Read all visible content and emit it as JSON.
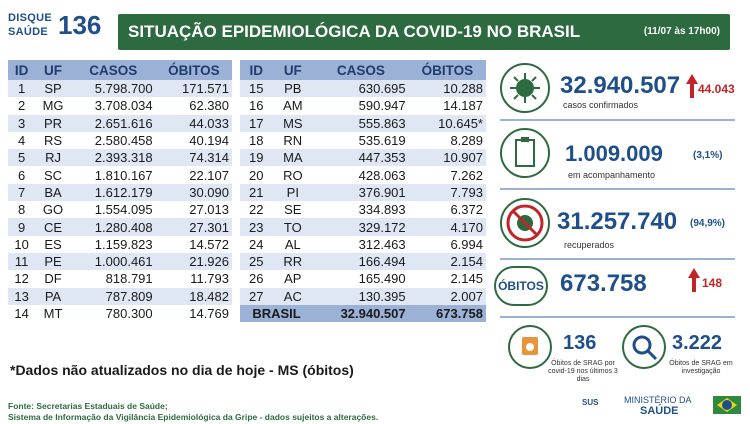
{
  "logo": {
    "line1": "DISQUE",
    "line2": "SAÚDE",
    "number": "136"
  },
  "header": {
    "title": "SITUAÇÃO EPIDEMIOLÓGICA DA COVID-19 NO BRASIL",
    "date": "(11/07 às 17h00)"
  },
  "table": {
    "columns": [
      "ID",
      "UF",
      "CASOS",
      "ÓBITOS"
    ],
    "left": [
      [
        "1",
        "SP",
        "5.798.700",
        "171.571"
      ],
      [
        "2",
        "MG",
        "3.708.034",
        "62.380"
      ],
      [
        "3",
        "PR",
        "2.651.616",
        "44.033"
      ],
      [
        "4",
        "RS",
        "2.580.458",
        "40.194"
      ],
      [
        "5",
        "RJ",
        "2.393.318",
        "74.314"
      ],
      [
        "6",
        "SC",
        "1.810.167",
        "22.107"
      ],
      [
        "7",
        "BA",
        "1.612.179",
        "30.090"
      ],
      [
        "8",
        "GO",
        "1.554.095",
        "27.013"
      ],
      [
        "9",
        "CE",
        "1.280.408",
        "27.301"
      ],
      [
        "10",
        "ES",
        "1.159.823",
        "14.572"
      ],
      [
        "11",
        "PE",
        "1.000.461",
        "21.926"
      ],
      [
        "12",
        "DF",
        "818.791",
        "11.793"
      ],
      [
        "13",
        "PA",
        "787.809",
        "18.482"
      ],
      [
        "14",
        "MT",
        "780.300",
        "14.769"
      ]
    ],
    "right": [
      [
        "15",
        "PB",
        "630.695",
        "10.288"
      ],
      [
        "16",
        "AM",
        "590.947",
        "14.187"
      ],
      [
        "17",
        "MS",
        "555.863",
        "10.645*"
      ],
      [
        "18",
        "RN",
        "535.619",
        "8.289"
      ],
      [
        "19",
        "MA",
        "447.353",
        "10.907"
      ],
      [
        "20",
        "RO",
        "428.063",
        "7.262"
      ],
      [
        "21",
        "PI",
        "376.901",
        "7.793"
      ],
      [
        "22",
        "SE",
        "334.893",
        "6.372"
      ],
      [
        "23",
        "TO",
        "329.172",
        "4.170"
      ],
      [
        "24",
        "AL",
        "312.463",
        "6.994"
      ],
      [
        "25",
        "RR",
        "166.494",
        "2.154"
      ],
      [
        "26",
        "AP",
        "165.490",
        "2.145"
      ],
      [
        "27",
        "AC",
        "130.395",
        "2.007"
      ]
    ],
    "total": {
      "label": "BRASIL",
      "casos": "32.940.507",
      "obitos": "673.758"
    }
  },
  "footnote": "*Dados não atualizados no dia de hoje - MS (óbitos)",
  "source": {
    "line1": "Fonte: Secretarias Estaduais de Saúde;",
    "line2": "Sistema de Informação da Vigilância Epidemiológica da Gripe - dados sujeitos a alterações."
  },
  "stats": {
    "confirmed": {
      "value": "32.940.507",
      "delta": "44.043",
      "label": "casos confirmados"
    },
    "monitoring": {
      "value": "1.009.009",
      "pct": "(3,1%)",
      "label": "em acompanhamento"
    },
    "recovered": {
      "value": "31.257.740",
      "pct": "(94,9%)",
      "label": "recuperados"
    },
    "deaths": {
      "badge": "ÓBITOS",
      "value": "673.758",
      "delta": "148"
    },
    "srag1": {
      "value": "136",
      "label": "Óbitos de SRAG por covid-19 nos últimos 3 dias"
    },
    "srag2": {
      "value": "3.222",
      "label": "Óbitos de SRAG em investigação"
    }
  },
  "footer": {
    "sus": "SUS",
    "ministerio": "MINISTÉRIO DA",
    "saude": "SAÚDE"
  },
  "colors": {
    "green": "#2d6a3f",
    "blue": "#1f4f8b",
    "table_header": "#9cb1d6",
    "row_alt": "#dfe7f4",
    "red": "#c0252a"
  }
}
